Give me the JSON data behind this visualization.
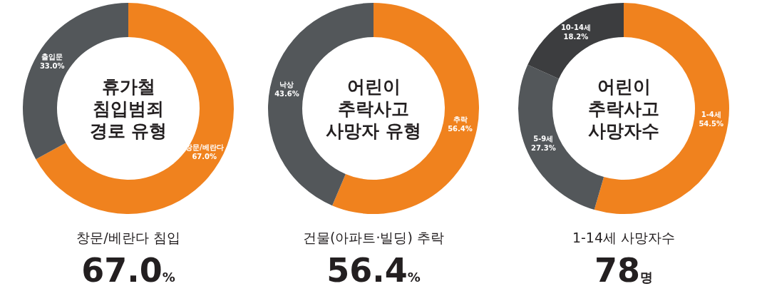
{
  "chart_data": [
    {
      "type": "donut",
      "title": "휴가철\n침입범죄\n경로 유형",
      "subtitle": "창문/베란다 침입",
      "annotations": [
        "67.0%"
      ],
      "categories": [
        "창문/베란다",
        "출입문"
      ],
      "values": [
        67.0,
        33.0
      ],
      "value_labels": [
        "67.0%",
        "33.0%"
      ],
      "colors": [
        "#f0821e",
        "#53575a"
      ]
    },
    {
      "type": "donut",
      "title": "어린이\n추락사고\n사망자 유형",
      "subtitle": "건물(아파트·빌딩) 추락",
      "annotations": [
        "56.4%"
      ],
      "categories": [
        "추락",
        "낙상"
      ],
      "values": [
        56.4,
        43.6
      ],
      "value_labels": [
        "56.4%",
        "43.6%"
      ],
      "colors": [
        "#f0821e",
        "#53575a"
      ]
    },
    {
      "type": "donut",
      "title": "어린이\n추락사고\n사망자수",
      "subtitle": "1-14세 사망자수",
      "annotations": [
        "78명"
      ],
      "categories": [
        "1-4세",
        "5-9세",
        "10-14세"
      ],
      "values": [
        54.5,
        27.3,
        18.2
      ],
      "value_labels": [
        "54.5%",
        "27.3%",
        "18.2%"
      ],
      "colors": [
        "#f0821e",
        "#53575a",
        "#3c3d3f"
      ]
    }
  ]
}
